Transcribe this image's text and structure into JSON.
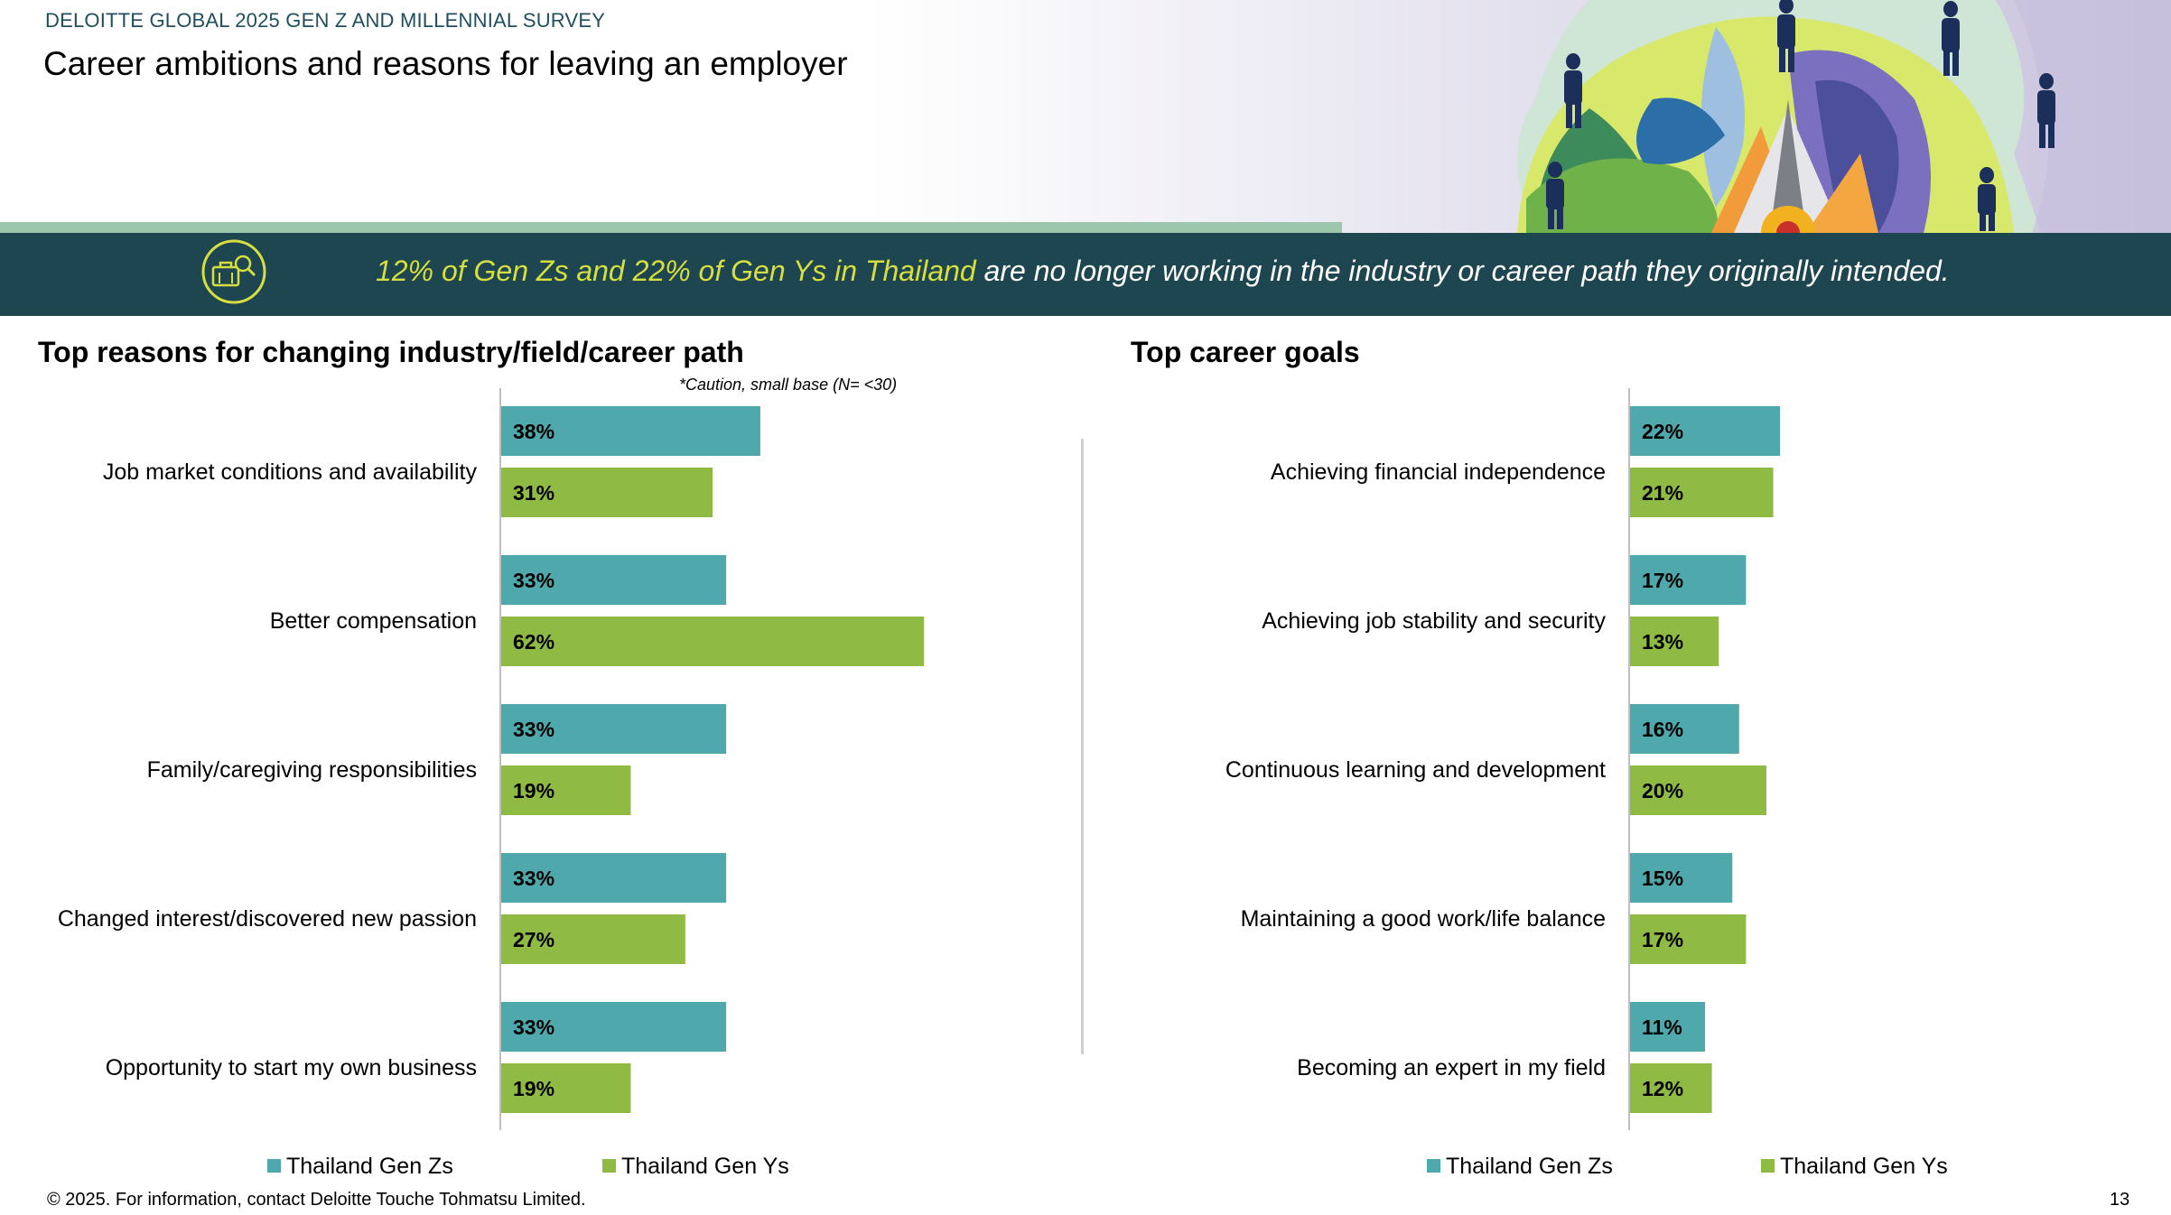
{
  "header": {
    "survey_label": "DELOITTE GLOBAL 2025 GEN Z AND MILLENNIAL SURVEY",
    "title": "Career ambitions and reasons for leaving an employer"
  },
  "banner": {
    "icon": "briefcase-search-icon",
    "highlight": "12% of Gen Zs and 22% of Gen Ys in Thailand",
    "text": " are no longer working in the industry or career path they originally intended."
  },
  "colors": {
    "gen_z": "#4fa8ab",
    "gen_y": "#8fba44",
    "banner_bg": "#1d4651",
    "highlight": "#d7df3f"
  },
  "left_panel": {
    "title": "Top reasons for changing industry/field/career path",
    "caution": "*Caution, small base (N= <30)"
  },
  "right_panel": {
    "title": "Top career goals"
  },
  "legend": {
    "gen_z": "Thailand Gen Zs",
    "gen_y": "Thailand Gen Ys"
  },
  "chart_data": [
    {
      "type": "bar",
      "orientation": "horizontal",
      "title": "Top reasons for changing industry/field/career path",
      "categories": [
        "Job market conditions and availability",
        "Better compensation",
        "Family/caregiving responsibilities",
        "Changed interest/discovered new passion",
        "Opportunity to start my own business"
      ],
      "series": [
        {
          "name": "Thailand Gen Zs",
          "values": [
            38,
            33,
            33,
            33,
            33
          ]
        },
        {
          "name": "Thailand Gen Ys",
          "values": [
            31,
            62,
            19,
            27,
            19
          ]
        }
      ],
      "unit": "%",
      "legend": "bottom"
    },
    {
      "type": "bar",
      "orientation": "horizontal",
      "title": "Top career goals",
      "categories": [
        "Achieving financial independence",
        "Achieving job stability and security",
        "Continuous learning and development",
        "Maintaining a good work/life balance",
        "Becoming an expert in my field"
      ],
      "series": [
        {
          "name": "Thailand Gen Zs",
          "values": [
            22,
            17,
            16,
            15,
            11
          ]
        },
        {
          "name": "Thailand Gen Ys",
          "values": [
            21,
            13,
            20,
            17,
            12
          ]
        }
      ],
      "unit": "%",
      "legend": "bottom"
    }
  ],
  "footer": {
    "copyright": "© 2025. For information, contact Deloitte Touche Tohmatsu Limited.",
    "page_number": "13"
  }
}
